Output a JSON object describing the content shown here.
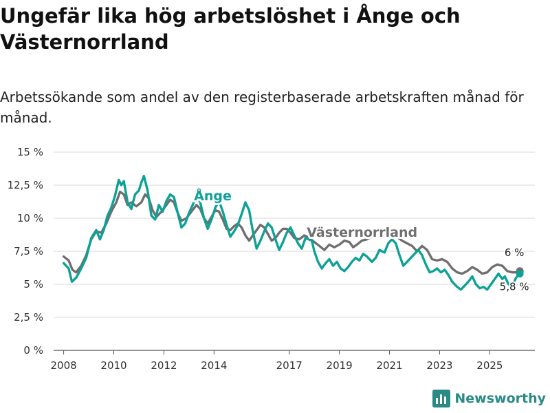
{
  "title": "Ungefär lika hög arbetslöshet i Ånge och Västernorrland",
  "subtitle": "Arbetssökande som andel av den registerbaserade arbetskraften månad för månad.",
  "brand": "Newsworthy",
  "colors": {
    "ange": "#0ea195",
    "vasternorrland": "#6f6f6f",
    "grid": "#d9d9d9",
    "brand": "#2a8a85"
  },
  "chart_data": {
    "type": "line",
    "x_unit": "year",
    "xlim": [
      2007.6,
      2026.8
    ],
    "ylim": [
      0,
      15
    ],
    "y_ticks": [
      {
        "value": 0,
        "label": "0 %"
      },
      {
        "value": 2.5,
        "label": "2,5 %"
      },
      {
        "value": 5,
        "label": "5 %"
      },
      {
        "value": 7.5,
        "label": "7,5 %"
      },
      {
        "value": 10,
        "label": "10 %"
      },
      {
        "value": 12.5,
        "label": "12,5 %"
      },
      {
        "value": 15,
        "label": "15 %"
      }
    ],
    "x_ticks": [
      {
        "value": 2008,
        "label": "2008"
      },
      {
        "value": 2010,
        "label": "2010"
      },
      {
        "value": 2012,
        "label": "2012"
      },
      {
        "value": 2014,
        "label": "2014"
      },
      {
        "value": 2017,
        "label": "2017"
      },
      {
        "value": 2019,
        "label": "2019"
      },
      {
        "value": 2021,
        "label": "2021"
      },
      {
        "value": 2023,
        "label": "2023"
      },
      {
        "value": 2025,
        "label": "2025"
      }
    ],
    "series": [
      {
        "name": "Västernorrland",
        "key": "vasternorrland",
        "end_label": "6 %",
        "points": [
          [
            2008.0,
            7.1
          ],
          [
            2008.2,
            6.8
          ],
          [
            2008.35,
            6.1
          ],
          [
            2008.5,
            5.9
          ],
          [
            2008.7,
            6.4
          ],
          [
            2008.9,
            7.2
          ],
          [
            2009.1,
            8.4
          ],
          [
            2009.3,
            9.0
          ],
          [
            2009.5,
            8.9
          ],
          [
            2009.7,
            9.6
          ],
          [
            2009.9,
            10.5
          ],
          [
            2010.1,
            11.2
          ],
          [
            2010.25,
            12.0
          ],
          [
            2010.4,
            11.8
          ],
          [
            2010.55,
            11.0
          ],
          [
            2010.7,
            11.2
          ],
          [
            2010.9,
            10.9
          ],
          [
            2011.1,
            11.2
          ],
          [
            2011.25,
            11.8
          ],
          [
            2011.4,
            11.5
          ],
          [
            2011.55,
            10.6
          ],
          [
            2011.7,
            10.1
          ],
          [
            2011.9,
            10.5
          ],
          [
            2012.1,
            11.0
          ],
          [
            2012.25,
            11.4
          ],
          [
            2012.4,
            11.2
          ],
          [
            2012.55,
            10.4
          ],
          [
            2012.7,
            9.8
          ],
          [
            2012.9,
            10.0
          ],
          [
            2013.1,
            10.5
          ],
          [
            2013.3,
            11.0
          ],
          [
            2013.45,
            10.7
          ],
          [
            2013.6,
            10.0
          ],
          [
            2013.75,
            9.6
          ],
          [
            2013.9,
            10.1
          ],
          [
            2014.05,
            10.6
          ],
          [
            2014.2,
            10.5
          ],
          [
            2014.35,
            9.9
          ],
          [
            2014.5,
            9.2
          ],
          [
            2014.65,
            9.1
          ],
          [
            2014.8,
            9.4
          ],
          [
            2014.95,
            9.6
          ],
          [
            2015.1,
            9.3
          ],
          [
            2015.25,
            8.7
          ],
          [
            2015.4,
            8.3
          ],
          [
            2015.55,
            8.7
          ],
          [
            2015.7,
            9.1
          ],
          [
            2015.85,
            9.5
          ],
          [
            2016.0,
            9.3
          ],
          [
            2016.15,
            8.8
          ],
          [
            2016.3,
            8.3
          ],
          [
            2016.45,
            8.5
          ],
          [
            2016.6,
            8.9
          ],
          [
            2016.75,
            9.2
          ],
          [
            2016.9,
            9.2
          ],
          [
            2017.05,
            8.9
          ],
          [
            2017.2,
            8.5
          ],
          [
            2017.4,
            8.4
          ],
          [
            2017.6,
            8.7
          ],
          [
            2017.8,
            8.5
          ],
          [
            2018.0,
            8.2
          ],
          [
            2018.2,
            7.9
          ],
          [
            2018.4,
            7.6
          ],
          [
            2018.6,
            8.0
          ],
          [
            2018.8,
            7.8
          ],
          [
            2019.0,
            8.0
          ],
          [
            2019.2,
            8.3
          ],
          [
            2019.4,
            8.2
          ],
          [
            2019.55,
            7.8
          ],
          [
            2019.7,
            8.0
          ],
          [
            2019.9,
            8.3
          ],
          [
            2020.1,
            8.4
          ],
          [
            2020.3,
            8.6
          ],
          [
            2020.5,
            9.2
          ],
          [
            2020.7,
            9.1
          ],
          [
            2020.9,
            8.8
          ],
          [
            2021.1,
            8.5
          ],
          [
            2021.3,
            8.6
          ],
          [
            2021.5,
            8.3
          ],
          [
            2021.7,
            8.1
          ],
          [
            2021.9,
            7.9
          ],
          [
            2022.1,
            7.5
          ],
          [
            2022.3,
            7.9
          ],
          [
            2022.5,
            7.6
          ],
          [
            2022.7,
            6.9
          ],
          [
            2022.9,
            6.8
          ],
          [
            2023.1,
            6.9
          ],
          [
            2023.3,
            6.7
          ],
          [
            2023.5,
            6.2
          ],
          [
            2023.7,
            5.9
          ],
          [
            2023.9,
            5.8
          ],
          [
            2024.1,
            6.0
          ],
          [
            2024.3,
            6.3
          ],
          [
            2024.5,
            6.1
          ],
          [
            2024.7,
            5.8
          ],
          [
            2024.9,
            5.9
          ],
          [
            2025.1,
            6.3
          ],
          [
            2025.3,
            6.5
          ],
          [
            2025.5,
            6.4
          ],
          [
            2025.7,
            6.0
          ],
          [
            2025.9,
            5.9
          ],
          [
            2026.1,
            5.9
          ],
          [
            2026.2,
            6.0
          ]
        ]
      },
      {
        "name": "Ånge",
        "key": "ange",
        "end_label": "5,8 %",
        "points": [
          [
            2008.0,
            6.6
          ],
          [
            2008.2,
            6.2
          ],
          [
            2008.33,
            5.2
          ],
          [
            2008.5,
            5.5
          ],
          [
            2008.7,
            6.2
          ],
          [
            2008.9,
            7.0
          ],
          [
            2009.1,
            8.5
          ],
          [
            2009.3,
            9.1
          ],
          [
            2009.45,
            8.4
          ],
          [
            2009.6,
            9.1
          ],
          [
            2009.75,
            10.2
          ],
          [
            2009.9,
            10.8
          ],
          [
            2010.05,
            11.7
          ],
          [
            2010.2,
            12.9
          ],
          [
            2010.3,
            12.5
          ],
          [
            2010.4,
            12.8
          ],
          [
            2010.55,
            11.2
          ],
          [
            2010.7,
            10.7
          ],
          [
            2010.85,
            11.8
          ],
          [
            2011.0,
            12.1
          ],
          [
            2011.1,
            12.7
          ],
          [
            2011.2,
            13.2
          ],
          [
            2011.35,
            12.1
          ],
          [
            2011.5,
            10.2
          ],
          [
            2011.65,
            9.9
          ],
          [
            2011.8,
            11.0
          ],
          [
            2011.95,
            10.5
          ],
          [
            2012.1,
            11.3
          ],
          [
            2012.25,
            11.8
          ],
          [
            2012.4,
            11.6
          ],
          [
            2012.55,
            10.4
          ],
          [
            2012.7,
            9.3
          ],
          [
            2012.85,
            9.6
          ],
          [
            2013.0,
            10.4
          ],
          [
            2013.15,
            11.0
          ],
          [
            2013.3,
            11.8
          ],
          [
            2013.45,
            11.2
          ],
          [
            2013.6,
            10.0
          ],
          [
            2013.75,
            9.2
          ],
          [
            2013.9,
            9.9
          ],
          [
            2014.05,
            10.8
          ],
          [
            2014.2,
            11.3
          ],
          [
            2014.35,
            10.5
          ],
          [
            2014.5,
            9.5
          ],
          [
            2014.65,
            8.6
          ],
          [
            2014.8,
            9.0
          ],
          [
            2014.95,
            9.5
          ],
          [
            2015.1,
            10.3
          ],
          [
            2015.25,
            11.2
          ],
          [
            2015.4,
            10.6
          ],
          [
            2015.55,
            9.0
          ],
          [
            2015.7,
            7.7
          ],
          [
            2015.85,
            8.3
          ],
          [
            2016.0,
            9.0
          ],
          [
            2016.15,
            9.6
          ],
          [
            2016.3,
            9.3
          ],
          [
            2016.45,
            8.4
          ],
          [
            2016.6,
            7.6
          ],
          [
            2016.75,
            8.2
          ],
          [
            2016.9,
            8.9
          ],
          [
            2017.05,
            9.3
          ],
          [
            2017.2,
            8.7
          ],
          [
            2017.35,
            8.1
          ],
          [
            2017.5,
            7.7
          ],
          [
            2017.65,
            8.5
          ],
          [
            2017.9,
            8.3
          ],
          [
            2018.0,
            7.5
          ],
          [
            2018.15,
            6.7
          ],
          [
            2018.3,
            6.2
          ],
          [
            2018.45,
            6.6
          ],
          [
            2018.6,
            6.9
          ],
          [
            2018.75,
            6.4
          ],
          [
            2018.9,
            6.7
          ],
          [
            2019.05,
            6.2
          ],
          [
            2019.2,
            6.0
          ],
          [
            2019.35,
            6.3
          ],
          [
            2019.5,
            6.7
          ],
          [
            2019.65,
            7.0
          ],
          [
            2019.8,
            6.8
          ],
          [
            2019.95,
            7.3
          ],
          [
            2020.1,
            7.1
          ],
          [
            2020.3,
            6.7
          ],
          [
            2020.45,
            7.0
          ],
          [
            2020.6,
            7.6
          ],
          [
            2020.8,
            7.4
          ],
          [
            2020.95,
            8.1
          ],
          [
            2021.1,
            8.4
          ],
          [
            2021.25,
            8.1
          ],
          [
            2021.4,
            7.2
          ],
          [
            2021.55,
            6.4
          ],
          [
            2021.7,
            6.7
          ],
          [
            2021.85,
            7.0
          ],
          [
            2022.0,
            7.3
          ],
          [
            2022.15,
            7.6
          ],
          [
            2022.3,
            7.2
          ],
          [
            2022.45,
            6.5
          ],
          [
            2022.6,
            5.9
          ],
          [
            2022.75,
            6.0
          ],
          [
            2022.9,
            6.2
          ],
          [
            2023.05,
            5.9
          ],
          [
            2023.2,
            6.1
          ],
          [
            2023.35,
            5.7
          ],
          [
            2023.5,
            5.2
          ],
          [
            2023.7,
            4.8
          ],
          [
            2023.85,
            4.6
          ],
          [
            2024.0,
            4.9
          ],
          [
            2024.15,
            5.2
          ],
          [
            2024.3,
            5.6
          ],
          [
            2024.45,
            5.0
          ],
          [
            2024.6,
            4.7
          ],
          [
            2024.75,
            4.8
          ],
          [
            2024.9,
            4.6
          ],
          [
            2025.05,
            5.0
          ],
          [
            2025.2,
            5.4
          ],
          [
            2025.35,
            5.8
          ],
          [
            2025.5,
            5.4
          ],
          [
            2025.6,
            5.6
          ],
          [
            2025.75,
            5.0
          ],
          [
            2025.9,
            4.9
          ],
          [
            2026.05,
            5.5
          ],
          [
            2026.2,
            5.8
          ]
        ]
      }
    ]
  }
}
